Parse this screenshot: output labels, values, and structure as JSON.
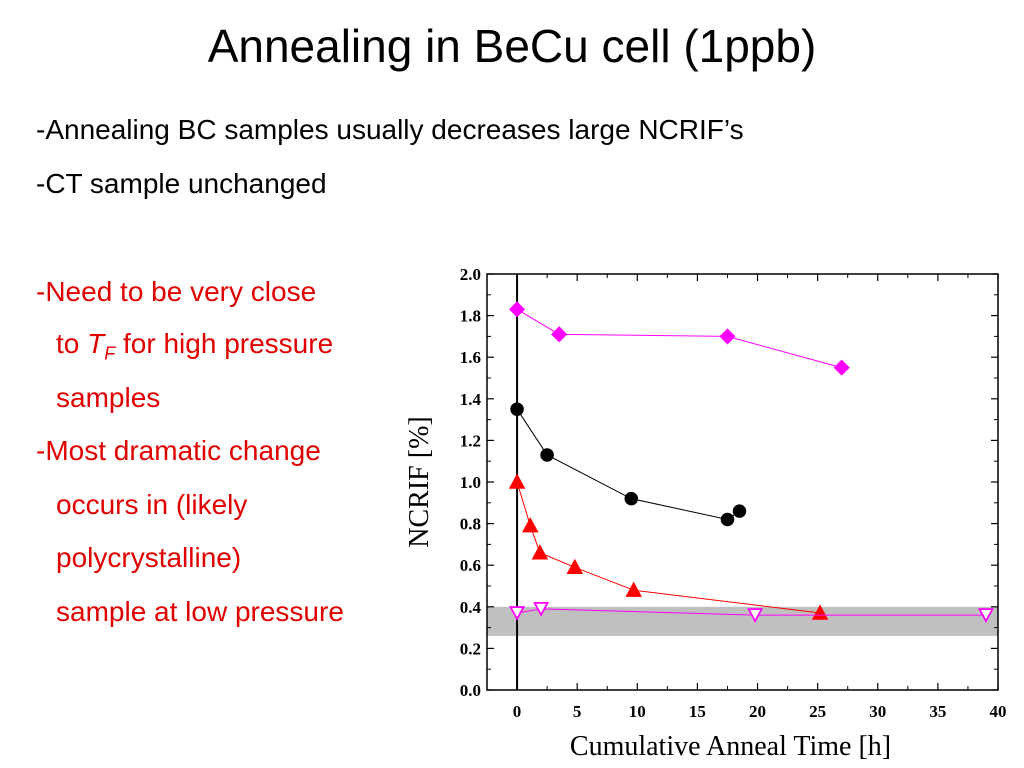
{
  "slide": {
    "title": "Annealing in BeCu cell (1ppb)",
    "bullets": [
      "-Annealing BC samples usually decreases large NCRIF’s",
      "-CT sample unchanged"
    ],
    "red_text": {
      "l1": "-Need to be very close",
      "l2_pre": "to ",
      "l2_T": "T",
      "l2_sub": "F",
      "l2_post": " for high pressure",
      "l3": "samples",
      "l4": "-Most dramatic change",
      "l5": "occurs in (likely",
      "l6": "polycrystalline)",
      "l7": "sample at low pressure"
    }
  },
  "chart_data": {
    "type": "scatter",
    "xlabel": "Cumulative Anneal Time [h]",
    "ylabel": "NCRIF [%]",
    "xlim": [
      -2.5,
      40
    ],
    "ylim": [
      0,
      2.0
    ],
    "xticks": [
      "0",
      "5",
      "10",
      "15",
      "20",
      "25",
      "30",
      "35",
      "40"
    ],
    "yticks": [
      "0.0",
      "0.2",
      "0.4",
      "0.6",
      "0.8",
      "1.0",
      "1.2",
      "1.4",
      "1.6",
      "1.8",
      "2.0"
    ],
    "vertical_line_x": 0,
    "shaded_band": {
      "y": [
        0.26,
        0.4
      ],
      "color": "#c0c0c0"
    },
    "series": [
      {
        "marker": "diamond",
        "color": "#ff00ff",
        "filled": true,
        "x": [
          0,
          3.5,
          17.5,
          27
        ],
        "y": [
          1.83,
          1.71,
          1.7,
          1.55
        ]
      },
      {
        "marker": "circle",
        "color": "#000000",
        "filled": true,
        "x": [
          0,
          2.5,
          9.5,
          17.5,
          18.5
        ],
        "y": [
          1.35,
          1.13,
          0.92,
          0.82,
          0.86
        ]
      },
      {
        "marker": "triangle-up",
        "color": "#ff0000",
        "filled": true,
        "x": [
          0,
          1.1,
          1.9,
          4.8,
          9.7,
          25.2
        ],
        "y": [
          1.0,
          0.79,
          0.66,
          0.59,
          0.48,
          0.37
        ]
      },
      {
        "marker": "triangle-down",
        "color": "#ff00ff",
        "filled": false,
        "x": [
          0,
          2,
          19.8,
          39
        ],
        "y": [
          0.37,
          0.39,
          0.36,
          0.36
        ]
      }
    ]
  }
}
